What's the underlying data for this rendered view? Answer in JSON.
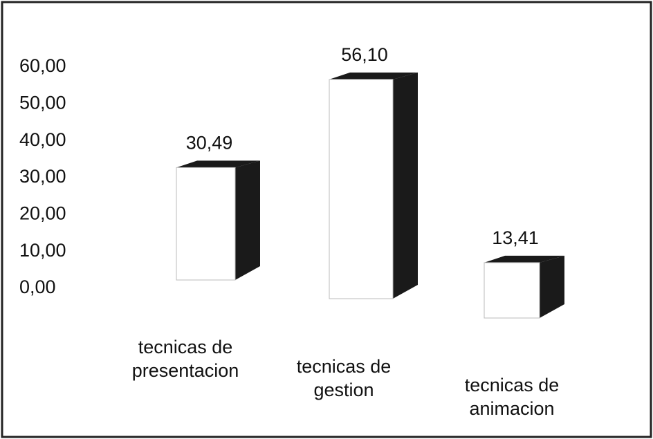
{
  "chart_data": {
    "type": "bar3d",
    "categories": [
      "tecnicas de presentacion",
      "tecnicas de gestion",
      "tecnicas de animacion"
    ],
    "values": [
      30.49,
      56.1,
      13.41
    ],
    "value_labels": [
      "30,49",
      "56,10",
      "13,41"
    ],
    "ylim": [
      0,
      60
    ],
    "yticks": [
      {
        "value": 0,
        "label": "0,00"
      },
      {
        "value": 10,
        "label": "10,00"
      },
      {
        "value": 20,
        "label": "20,00"
      },
      {
        "value": 30,
        "label": "30,00"
      },
      {
        "value": 40,
        "label": "40,00"
      },
      {
        "value": 50,
        "label": "50,00"
      },
      {
        "value": 60,
        "label": "60,00"
      }
    ],
    "color": "#ffffff",
    "side_color": "#1a1a1a"
  }
}
